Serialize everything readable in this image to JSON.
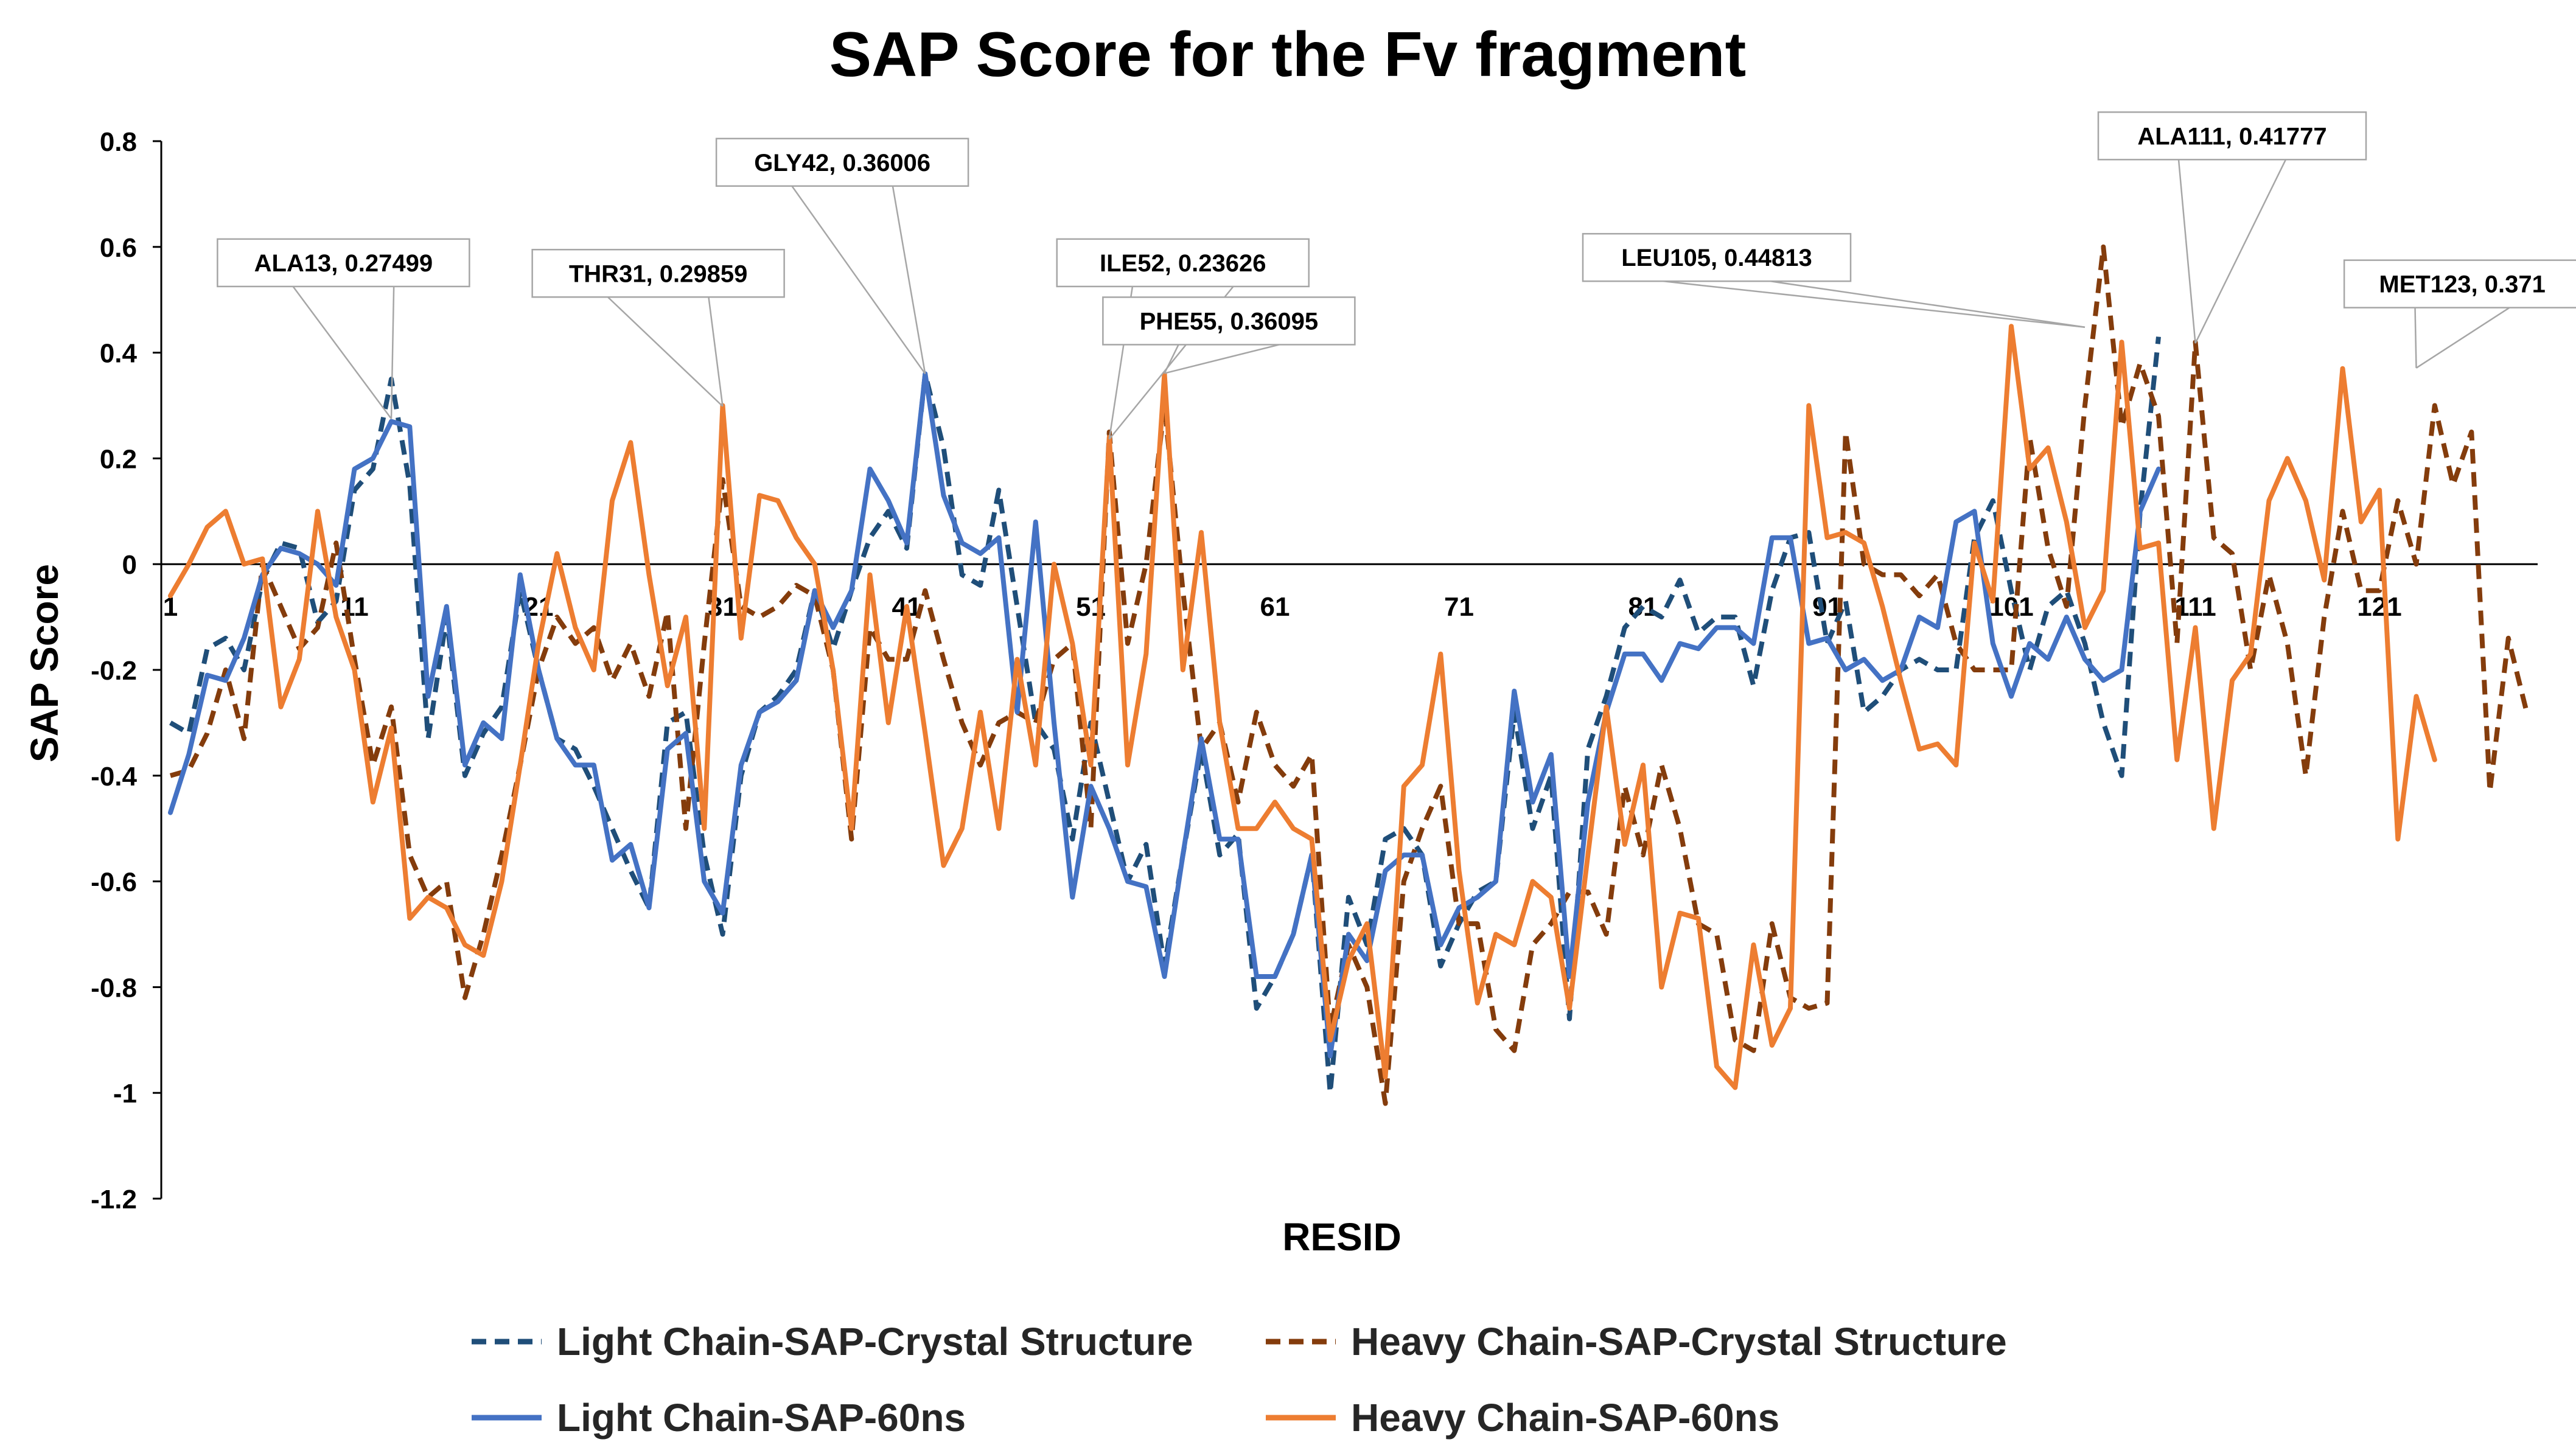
{
  "chart_data": {
    "type": "line",
    "title": "SAP Score for the Fv fragment",
    "xlabel": "RESID",
    "ylabel": "SAP Score",
    "ylim": [
      -1.2,
      0.8
    ],
    "yticks": [
      0.8,
      0.6,
      0.4,
      0.2,
      0,
      -0.2,
      -0.4,
      -0.6,
      -0.8,
      -1,
      -1.2
    ],
    "ytick_labels": [
      "0.8",
      "0.6",
      "0.4",
      "0.2",
      "0",
      "-0.2",
      "-0.4",
      "-0.6",
      "-0.8",
      "-1",
      "-1.2"
    ],
    "xlim": [
      1,
      131
    ],
    "xticks": [
      1,
      11,
      21,
      31,
      41,
      51,
      61,
      71,
      81,
      91,
      101,
      111,
      121
    ],
    "xtick_labels": [
      "1",
      "11",
      "21",
      "31",
      "41",
      "51",
      "61",
      "71",
      "81",
      "91",
      "101",
      "111",
      "121"
    ],
    "series": [
      {
        "name": "Light Chain-SAP-Crystal Structure",
        "color": "#1f4e79",
        "dashed": true,
        "values": [
          -0.3,
          -0.32,
          -0.16,
          -0.14,
          -0.2,
          -0.03,
          0.04,
          0.03,
          -0.11,
          -0.07,
          0.14,
          0.18,
          0.35,
          0.15,
          -0.33,
          -0.1,
          -0.4,
          -0.32,
          -0.27,
          -0.05,
          -0.2,
          -0.33,
          -0.35,
          -0.42,
          -0.5,
          -0.58,
          -0.65,
          -0.3,
          -0.28,
          -0.55,
          -0.7,
          -0.4,
          -0.28,
          -0.25,
          -0.2,
          -0.05,
          -0.16,
          -0.05,
          0.05,
          0.1,
          0.03,
          0.36,
          0.22,
          -0.02,
          -0.04,
          0.14,
          -0.08,
          -0.3,
          -0.35,
          -0.52,
          -0.3,
          -0.45,
          -0.6,
          -0.53,
          -0.76,
          -0.55,
          -0.35,
          -0.55,
          -0.51,
          -0.84,
          -0.78,
          -0.7,
          -0.55,
          -1.0,
          -0.63,
          -0.72,
          -0.52,
          -0.5,
          -0.55,
          -0.76,
          -0.68,
          -0.62,
          -0.6,
          -0.28,
          -0.5,
          -0.4,
          -0.86,
          -0.35,
          -0.25,
          -0.12,
          -0.08,
          -0.1,
          -0.03,
          -0.13,
          -0.1,
          -0.1,
          -0.23,
          -0.05,
          0.05,
          0.06,
          -0.15,
          -0.07,
          -0.28,
          -0.25,
          -0.2,
          -0.18,
          -0.2,
          -0.2,
          0.05,
          0.12,
          -0.05,
          -0.2,
          -0.08,
          -0.05,
          -0.15,
          -0.3,
          -0.4,
          0.1,
          0.43
        ]
      },
      {
        "name": "Heavy Chain-SAP-Crystal Structure",
        "color": "#843c0c",
        "dashed": true,
        "values": [
          -0.4,
          -0.39,
          -0.32,
          -0.2,
          -0.33,
          0.0,
          -0.08,
          -0.16,
          -0.12,
          0.04,
          -0.18,
          -0.38,
          -0.27,
          -0.55,
          -0.63,
          -0.6,
          -0.82,
          -0.7,
          -0.55,
          -0.38,
          -0.2,
          -0.1,
          -0.15,
          -0.12,
          -0.22,
          -0.15,
          -0.25,
          -0.09,
          -0.5,
          -0.15,
          0.16,
          -0.08,
          -0.1,
          -0.08,
          -0.04,
          -0.06,
          -0.2,
          -0.52,
          -0.12,
          -0.18,
          -0.18,
          -0.05,
          -0.18,
          -0.3,
          -0.38,
          -0.3,
          -0.28,
          -0.3,
          -0.18,
          -0.15,
          -0.5,
          0.25,
          -0.15,
          0.0,
          0.3,
          -0.05,
          -0.35,
          -0.3,
          -0.45,
          -0.28,
          -0.38,
          -0.42,
          -0.36,
          -0.88,
          -0.72,
          -0.8,
          -1.02,
          -0.6,
          -0.5,
          -0.42,
          -0.68,
          -0.68,
          -0.88,
          -0.92,
          -0.72,
          -0.68,
          -0.62,
          -0.62,
          -0.7,
          -0.42,
          -0.55,
          -0.38,
          -0.5,
          -0.68,
          -0.7,
          -0.9,
          -0.92,
          -0.68,
          -0.82,
          -0.84,
          -0.83,
          0.25,
          0.0,
          -0.02,
          -0.02,
          -0.06,
          -0.02,
          -0.15,
          -0.2,
          -0.2,
          -0.2,
          0.24,
          0.03,
          -0.08,
          0.3,
          0.6,
          0.26,
          0.38,
          0.28,
          -0.15,
          0.42,
          0.05,
          0.02,
          -0.2,
          -0.02,
          -0.15,
          -0.4,
          -0.1,
          0.1,
          -0.05,
          -0.05,
          0.12,
          0.0,
          0.3,
          0.15,
          0.25,
          -0.43,
          -0.14,
          -0.28
        ]
      },
      {
        "name": "Light Chain-SAP-60ns",
        "color": "#4472c4",
        "dashed": false,
        "values": [
          -0.47,
          -0.36,
          -0.21,
          -0.22,
          -0.14,
          -0.02,
          0.03,
          0.02,
          0.0,
          -0.04,
          0.18,
          0.2,
          0.27,
          0.26,
          -0.25,
          -0.08,
          -0.38,
          -0.3,
          -0.33,
          -0.02,
          -0.2,
          -0.33,
          -0.38,
          -0.38,
          -0.56,
          -0.53,
          -0.65,
          -0.35,
          -0.32,
          -0.6,
          -0.66,
          -0.38,
          -0.28,
          -0.26,
          -0.22,
          -0.05,
          -0.12,
          -0.05,
          0.18,
          0.12,
          0.04,
          0.36,
          0.13,
          0.04,
          0.02,
          0.05,
          -0.28,
          0.08,
          -0.3,
          -0.63,
          -0.42,
          -0.5,
          -0.6,
          -0.61,
          -0.78,
          -0.55,
          -0.33,
          -0.52,
          -0.52,
          -0.78,
          -0.78,
          -0.7,
          -0.55,
          -0.93,
          -0.7,
          -0.75,
          -0.58,
          -0.55,
          -0.55,
          -0.72,
          -0.65,
          -0.63,
          -0.6,
          -0.24,
          -0.45,
          -0.36,
          -0.78,
          -0.45,
          -0.28,
          -0.17,
          -0.17,
          -0.22,
          -0.15,
          -0.16,
          -0.12,
          -0.12,
          -0.15,
          0.05,
          0.05,
          -0.15,
          -0.14,
          -0.2,
          -0.18,
          -0.22,
          -0.2,
          -0.1,
          -0.12,
          0.08,
          0.1,
          -0.15,
          -0.25,
          -0.15,
          -0.18,
          -0.1,
          -0.18,
          -0.22,
          -0.2,
          0.1,
          0.18
        ]
      },
      {
        "name": "Heavy Chain-SAP-60ns",
        "color": "#ed7d31",
        "dashed": false,
        "values": [
          -0.06,
          0.0,
          0.07,
          0.1,
          0.0,
          0.01,
          -0.27,
          -0.18,
          0.1,
          -0.1,
          -0.2,
          -0.45,
          -0.31,
          -0.67,
          -0.63,
          -0.65,
          -0.72,
          -0.74,
          -0.6,
          -0.38,
          -0.15,
          0.02,
          -0.12,
          -0.2,
          0.12,
          0.23,
          -0.02,
          -0.23,
          -0.1,
          -0.5,
          0.3,
          -0.14,
          0.13,
          0.12,
          0.05,
          0.0,
          -0.2,
          -0.5,
          -0.02,
          -0.3,
          -0.08,
          -0.32,
          -0.57,
          -0.5,
          -0.28,
          -0.5,
          -0.18,
          -0.38,
          0.0,
          -0.15,
          -0.38,
          0.24,
          -0.38,
          -0.17,
          0.36,
          -0.2,
          0.06,
          -0.3,
          -0.5,
          -0.5,
          -0.45,
          -0.5,
          -0.52,
          -0.9,
          -0.75,
          -0.68,
          -0.97,
          -0.42,
          -0.38,
          -0.17,
          -0.58,
          -0.83,
          -0.7,
          -0.72,
          -0.6,
          -0.63,
          -0.84,
          -0.55,
          -0.27,
          -0.53,
          -0.38,
          -0.8,
          -0.66,
          -0.67,
          -0.95,
          -0.99,
          -0.72,
          -0.91,
          -0.84,
          0.3,
          0.05,
          0.06,
          0.04,
          -0.08,
          -0.22,
          -0.35,
          -0.34,
          -0.38,
          0.04,
          -0.07,
          0.45,
          0.18,
          0.22,
          0.08,
          -0.12,
          -0.05,
          0.42,
          0.03,
          0.04,
          -0.37,
          -0.12,
          -0.5,
          -0.22,
          -0.17,
          0.12,
          0.2,
          0.12,
          -0.03,
          0.37,
          0.08,
          0.14,
          -0.52,
          -0.25,
          -0.37
        ]
      }
    ],
    "annotations": [
      {
        "text": "ALA13, 0.27499",
        "x": 13,
        "y": 0.27499,
        "box_x": 10.4,
        "box_y": 0.57
      },
      {
        "text": "THR31, 0.29859",
        "x": 31,
        "y": 0.29859,
        "box_x": 27.5,
        "box_y": 0.55
      },
      {
        "text": "GLY42, 0.36006",
        "x": 42,
        "y": 0.36006,
        "box_x": 37.5,
        "box_y": 0.76
      },
      {
        "text": "ILE52, 0.23626",
        "x": 52,
        "y": 0.23626,
        "box_x": 56.0,
        "box_y": 0.57
      },
      {
        "text": "PHE55, 0.36095",
        "x": 55,
        "y": 0.36095,
        "box_x": 58.5,
        "box_y": 0.46
      },
      {
        "text": "LEU105, 0.44813",
        "x": 105,
        "y": 0.44813,
        "box_x": 85.0,
        "box_y": 0.58
      },
      {
        "text": "ALA111, 0.41777",
        "x": 111,
        "y": 0.41777,
        "box_x": 113.0,
        "box_y": 0.81
      },
      {
        "text": "MET123, 0.371",
        "x": 123,
        "y": 0.371,
        "box_x": 125.5,
        "box_y": 0.53
      }
    ],
    "legend": [
      {
        "label": "Light Chain-SAP-Crystal Structure",
        "series": 0
      },
      {
        "label": "Heavy Chain-SAP-Crystal Structure",
        "series": 1
      },
      {
        "label": "Light Chain-SAP-60ns",
        "series": 2
      },
      {
        "label": "Heavy Chain-SAP-60ns",
        "series": 3
      }
    ],
    "legend_position": "bottom",
    "grid": false
  }
}
